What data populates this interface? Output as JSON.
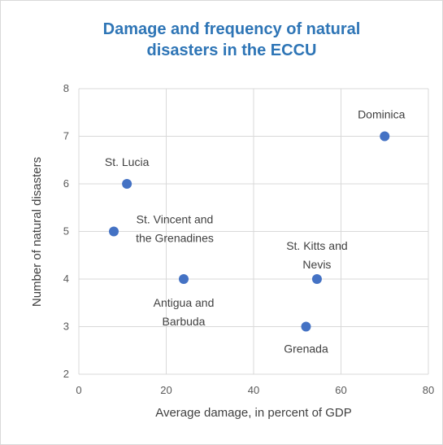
{
  "chart_data": {
    "type": "scatter",
    "title": "Damage and frequency of natural disasters in the ECCU",
    "x_label": "Average damage, in percent of GDP",
    "y_label": "Number of natural disasters",
    "point_labels": [
      "Dominica",
      "St. Lucia",
      "St. Vincent and the Grenadines",
      "Antigua and Barbuda",
      "St. Kitts and Nevis",
      "Grenada"
    ],
    "x": [
      70,
      11,
      8,
      24,
      54.5,
      52
    ],
    "values": [
      7,
      6,
      5,
      4,
      4,
      3
    ],
    "color": "#4472c4",
    "xlim": [
      0,
      80
    ],
    "xticks": [
      0,
      20,
      40,
      60,
      80
    ],
    "ylim": [
      2,
      8
    ],
    "yticks": [
      2,
      3,
      4,
      5,
      6,
      7,
      8
    ],
    "grid": true
  }
}
